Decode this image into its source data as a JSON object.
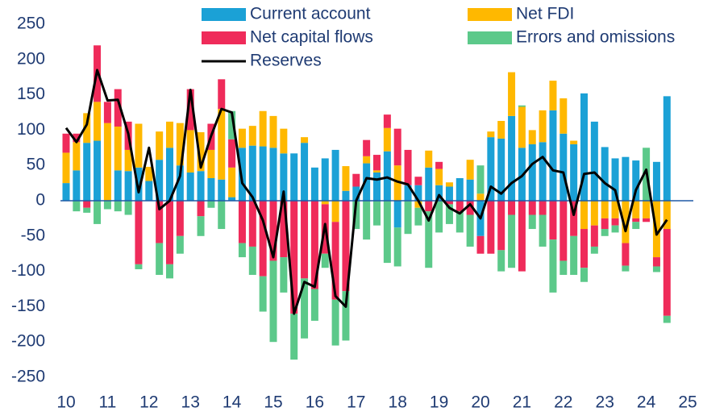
{
  "chart_data": {
    "type": "bar",
    "stacked": true,
    "x": [
      10,
      10.25,
      10.5,
      10.75,
      11,
      11.25,
      11.5,
      11.75,
      12,
      12.25,
      12.5,
      12.75,
      13,
      13.25,
      13.5,
      13.75,
      14,
      14.25,
      14.5,
      14.75,
      15,
      15.25,
      15.5,
      15.75,
      16,
      16.25,
      16.5,
      16.75,
      17,
      17.25,
      17.5,
      17.75,
      18,
      18.25,
      18.5,
      18.75,
      19,
      19.25,
      19.5,
      19.75,
      20,
      20.25,
      20.5,
      20.75,
      21,
      21.25,
      21.5,
      21.75,
      22,
      22.25,
      22.5,
      22.75,
      23,
      23.25,
      23.5,
      23.75,
      24,
      24.25,
      24.5
    ],
    "series": [
      {
        "name": "Current account",
        "color": "#1ba1d6",
        "values": [
          25,
          43,
          82,
          85,
          0,
          43,
          42,
          47,
          28,
          58,
          75,
          50,
          40,
          42,
          32,
          30,
          5,
          75,
          78,
          77,
          75,
          67,
          67,
          82,
          47,
          60,
          72,
          14,
          20,
          53,
          40,
          70,
          -38,
          22,
          22,
          47,
          22,
          20,
          32,
          30,
          -50,
          90,
          88,
          120,
          75,
          80,
          83,
          128,
          95,
          80,
          152,
          112,
          76,
          60,
          62,
          57,
          0,
          55,
          148
        ]
      },
      {
        "name": "Net FDI",
        "color": "#ffb800",
        "values": [
          43,
          40,
          42,
          55,
          110,
          62,
          30,
          62,
          20,
          40,
          37,
          60,
          60,
          55,
          40,
          100,
          42,
          27,
          28,
          50,
          45,
          35,
          0,
          8,
          0,
          -5,
          -30,
          35,
          0,
          10,
          3,
          33,
          50,
          0,
          -10,
          24,
          23,
          6,
          0,
          28,
          10,
          8,
          25,
          62,
          58,
          20,
          45,
          42,
          50,
          5,
          -40,
          -35,
          -25,
          -25,
          -60,
          -25,
          -25,
          -80,
          -40
        ]
      },
      {
        "name": "Net capital flows",
        "color": "#ef2b5a",
        "values": [
          27,
          12,
          -10,
          80,
          30,
          53,
          40,
          -90,
          0,
          -60,
          -90,
          -50,
          58,
          -22,
          37,
          42,
          40,
          -60,
          -65,
          -107,
          -85,
          -80,
          -160,
          -110,
          -125,
          -70,
          -110,
          -128,
          18,
          23,
          22,
          19,
          52,
          50,
          12,
          -15,
          10,
          -5,
          -15,
          -20,
          -25,
          -75,
          -70,
          -20,
          -100,
          -20,
          -20,
          -55,
          -85,
          -50,
          -55,
          -30,
          -15,
          -10,
          -32,
          -5,
          -5,
          -13,
          -123
        ]
      },
      {
        "name": "Errors and omissions",
        "color": "#5cc98a",
        "values": [
          0,
          -15,
          -7,
          -33,
          -12,
          -15,
          -20,
          -7,
          0,
          -45,
          -20,
          -25,
          0,
          -28,
          -10,
          -40,
          40,
          -20,
          -40,
          -50,
          -115,
          -50,
          -65,
          -85,
          -45,
          -20,
          -65,
          -70,
          -40,
          -55,
          -35,
          -88,
          -55,
          -47,
          -25,
          -80,
          -45,
          -28,
          -30,
          -45,
          40,
          0,
          -30,
          -75,
          2,
          -20,
          -45,
          -75,
          -20,
          -55,
          -20,
          -10,
          -10,
          -10,
          -8,
          -10,
          75,
          -8,
          -10
        ]
      },
      {
        "name": "Reserves",
        "type": "line",
        "color": "#000000",
        "values": [
          103,
          83,
          108,
          185,
          142,
          143,
          95,
          12,
          75,
          -12,
          0,
          35,
          157,
          47,
          92,
          130,
          125,
          25,
          5,
          -28,
          -80,
          13,
          -160,
          -115,
          -122,
          -33,
          -135,
          -150,
          0,
          32,
          30,
          33,
          27,
          23,
          0,
          -28,
          8,
          -10,
          -18,
          -5,
          -25,
          20,
          10,
          25,
          35,
          52,
          62,
          43,
          40,
          -20,
          38,
          40,
          25,
          15,
          -43,
          15,
          44,
          -48,
          -27
        ]
      }
    ],
    "xlim": [
      10,
      25
    ],
    "xticks": [
      10,
      11,
      12,
      13,
      14,
      15,
      16,
      17,
      18,
      19,
      20,
      21,
      22,
      23,
      24,
      25
    ],
    "ylim": [
      -250,
      250
    ],
    "yticks": [
      -250,
      -200,
      -150,
      -100,
      -50,
      0,
      50,
      100,
      150,
      200,
      250
    ]
  }
}
